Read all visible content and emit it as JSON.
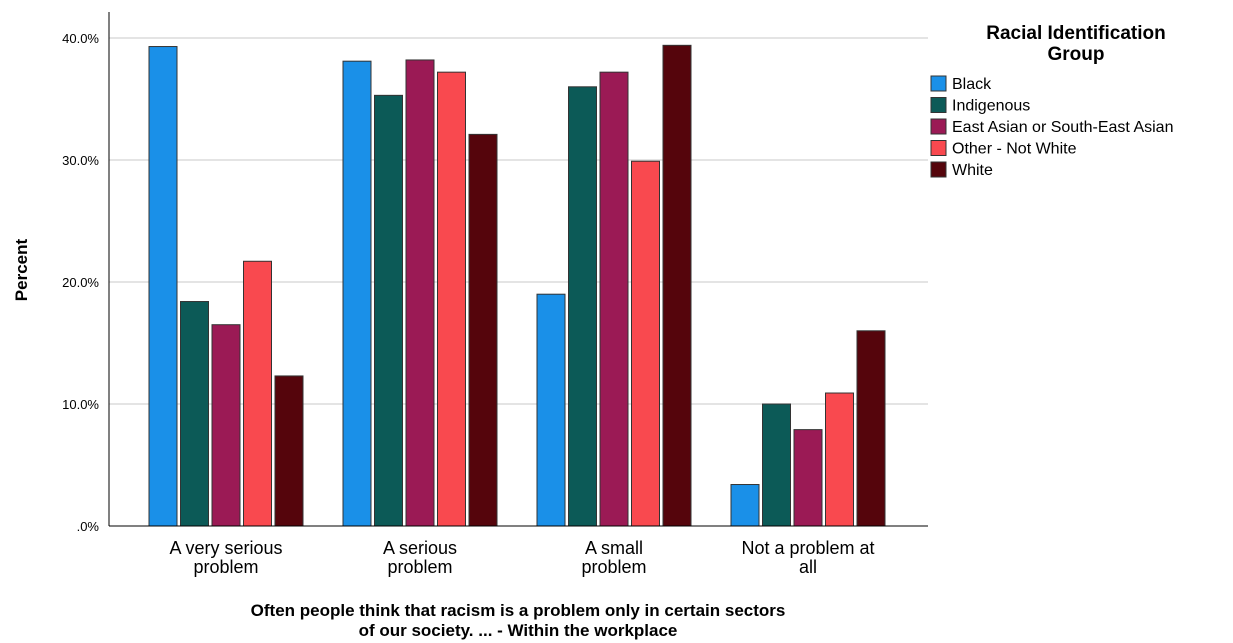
{
  "chart_data": {
    "type": "bar",
    "categories": [
      [
        "A very serious",
        "problem"
      ],
      [
        "A serious",
        "problem"
      ],
      [
        "A small",
        "problem"
      ],
      [
        "Not a problem at",
        "all"
      ]
    ],
    "series": [
      {
        "name": "Black",
        "color": "#1a90e8",
        "values": [
          39.3,
          38.1,
          19.0,
          3.4
        ]
      },
      {
        "name": "Indigenous",
        "color": "#0c5a57",
        "values": [
          18.4,
          35.3,
          36.0,
          10.0
        ]
      },
      {
        "name": "East Asian or South-East Asian",
        "color": "#9b1a55",
        "values": [
          16.5,
          38.2,
          37.2,
          7.9
        ]
      },
      {
        "name": "Other - Not White",
        "color": "#f9494f",
        "values": [
          21.7,
          37.2,
          29.9,
          10.9
        ]
      },
      {
        "name": "White",
        "color": "#55050c",
        "values": [
          12.3,
          32.1,
          39.4,
          16.0
        ]
      }
    ],
    "ylabel": "Percent",
    "xlabel": [
      "Often people think that racism is a problem only in certain sectors",
      "of our society. ... - Within the workplace"
    ],
    "ylim": [
      0,
      40
    ],
    "yticks": [
      0,
      10,
      20,
      30,
      40
    ],
    "ytick_labels": [
      ".0%",
      "10.0%",
      "20.0%",
      "30.0%",
      "40.0%"
    ],
    "grid": true,
    "legend": {
      "title": [
        "Racial Identification",
        "Group"
      ],
      "placement": "right"
    }
  }
}
